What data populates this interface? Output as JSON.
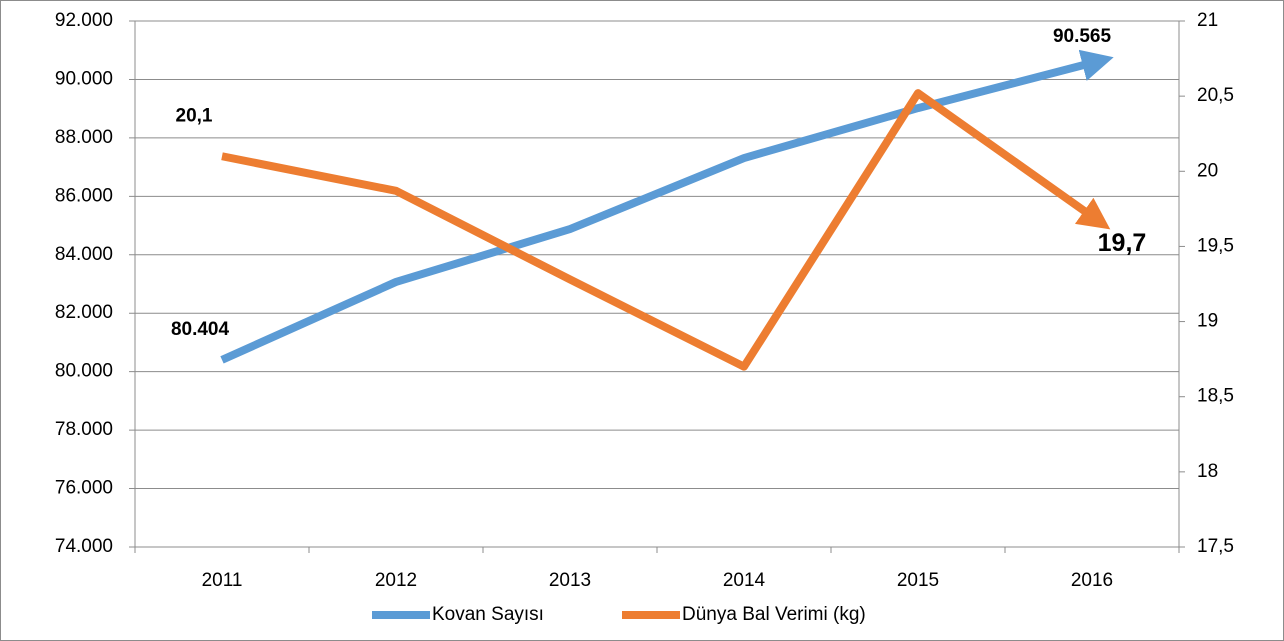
{
  "chart_data": {
    "type": "line",
    "categories": [
      "2011",
      "2012",
      "2013",
      "2014",
      "2015",
      "2016"
    ],
    "series": [
      {
        "name": "Kovan Sayısı",
        "color": "#5b9bd5",
        "values": [
          80404,
          83070,
          84880,
          87310,
          89020,
          90565
        ],
        "value_labels": [
          "80.404",
          null,
          null,
          null,
          null,
          "90.565"
        ]
      },
      {
        "name": "Dünya Bal Verimi (kg)",
        "color": "#ed7d31",
        "axis": "y2",
        "values": [
          20.1,
          19.87,
          19.28,
          18.7,
          20.52,
          19.7
        ],
        "value_labels": [
          "20,1",
          null,
          null,
          null,
          null,
          "19,7"
        ]
      }
    ],
    "ylim": [
      74000,
      92000
    ],
    "yticks": [
      {
        "value": 74000,
        "label": "74.000"
      },
      {
        "value": 76000,
        "label": "76.000"
      },
      {
        "value": 78000,
        "label": "78.000"
      },
      {
        "value": 80000,
        "label": "80.000"
      },
      {
        "value": 82000,
        "label": "82.000"
      },
      {
        "value": 84000,
        "label": "84.000"
      },
      {
        "value": 86000,
        "label": "86.000"
      },
      {
        "value": 88000,
        "label": "88.000"
      },
      {
        "value": 90000,
        "label": "90.000"
      },
      {
        "value": 92000,
        "label": "92.000"
      }
    ],
    "y2lim": [
      17.5,
      21
    ],
    "y2ticks": [
      {
        "value": 17.5,
        "label": "17,5"
      },
      18,
      {
        "value": 18.5,
        "label": "18,5"
      },
      19,
      {
        "value": 19.5,
        "label": "19,5"
      },
      20,
      {
        "value": 20.5,
        "label": "20,5"
      },
      21
    ],
    "grid": true,
    "legend": "bottom"
  }
}
